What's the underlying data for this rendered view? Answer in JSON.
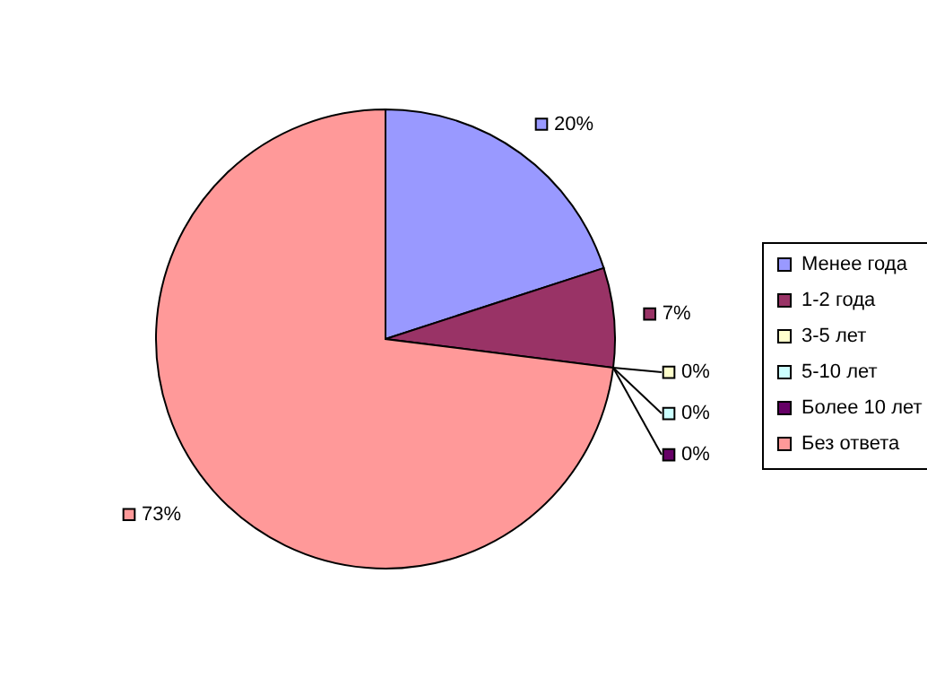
{
  "chart_data": {
    "type": "pie",
    "categories": [
      "Менее года",
      "1-2 года",
      "3-5 лет",
      "5-10 лет",
      "Более 10 лет",
      "Без ответа"
    ],
    "values": [
      20,
      7,
      0,
      0,
      0,
      73
    ],
    "colors": [
      "#9999ff",
      "#993366",
      "#ffffcc",
      "#ccffff",
      "#660066",
      "#ff9999"
    ],
    "value_labels": [
      "20%",
      "7%",
      "0%",
      "0%",
      "0%",
      "73%"
    ],
    "legend": "right"
  }
}
